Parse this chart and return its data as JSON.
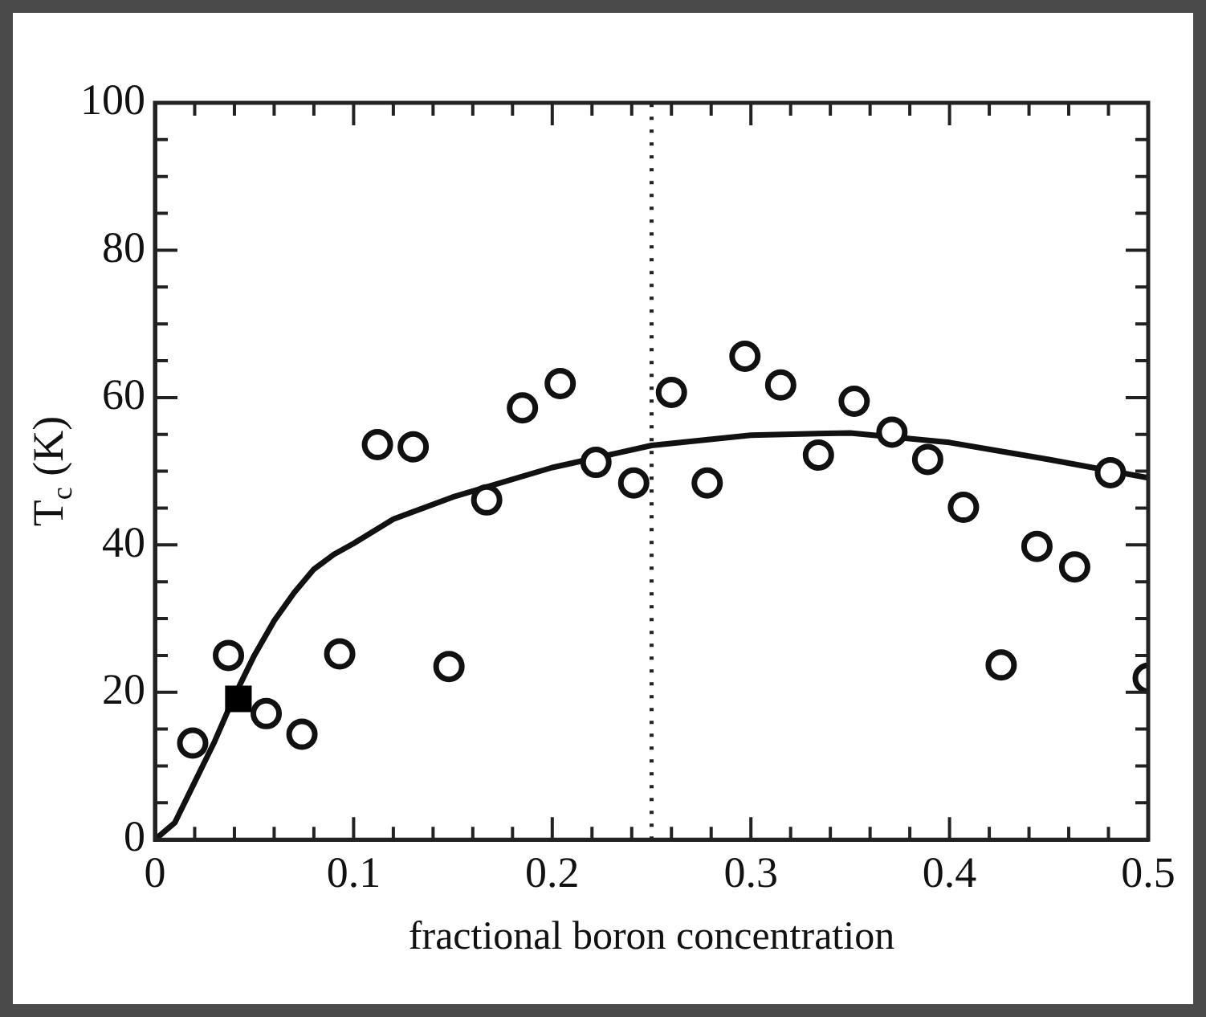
{
  "chart_data": {
    "type": "scatter",
    "xlabel": "fractional boron concentration",
    "ylabel": "T$_{c}$ (K)",
    "xlim": [
      0,
      0.5
    ],
    "ylim": [
      0,
      100
    ],
    "xticks": [
      0,
      {
        "value": 0.02,
        "label": null
      },
      {
        "value": 0.04,
        "label": null
      },
      {
        "value": 0.06,
        "label": null
      },
      {
        "value": 0.08,
        "label": null
      },
      0.1,
      {
        "value": 0.12,
        "label": null
      },
      {
        "value": 0.14,
        "label": null
      },
      {
        "value": 0.16,
        "label": null
      },
      {
        "value": 0.18,
        "label": null
      },
      0.2,
      {
        "value": 0.22,
        "label": null
      },
      {
        "value": 0.24,
        "label": null
      },
      {
        "value": 0.26,
        "label": null
      },
      {
        "value": 0.28,
        "label": null
      },
      0.3,
      {
        "value": 0.32,
        "label": null
      },
      {
        "value": 0.34,
        "label": null
      },
      {
        "value": 0.36,
        "label": null
      },
      {
        "value": 0.38,
        "label": null
      },
      0.4,
      {
        "value": 0.42,
        "label": null
      },
      {
        "value": 0.44,
        "label": null
      },
      {
        "value": 0.46,
        "label": null
      },
      {
        "value": 0.48,
        "label": null
      },
      0.5
    ],
    "yticks": [
      0,
      {
        "value": 5,
        "label": null
      },
      {
        "value": 10,
        "label": null
      },
      {
        "value": 15,
        "label": null
      },
      20,
      {
        "value": 25,
        "label": null
      },
      {
        "value": 30,
        "label": null
      },
      {
        "value": 35,
        "label": null
      },
      40,
      {
        "value": 45,
        "label": null
      },
      {
        "value": 50,
        "label": null
      },
      {
        "value": 55,
        "label": null
      },
      60,
      {
        "value": 65,
        "label": null
      },
      {
        "value": 70,
        "label": null
      },
      {
        "value": 75,
        "label": null
      },
      80,
      {
        "value": 85,
        "label": null
      },
      {
        "value": 90,
        "label": null
      },
      {
        "value": 95,
        "label": null
      },
      100
    ],
    "grid": false,
    "legend": false,
    "series": [
      {
        "type": "line",
        "color": "#111111",
        "marker": "none",
        "line_style": "solid",
        "x": [
          0,
          0.01,
          0.02,
          0.03,
          0.04,
          0.05,
          0.06,
          0.07,
          0.08,
          0.09,
          0.1,
          0.12,
          0.15,
          0.2,
          0.25,
          0.3,
          0.35,
          0.4,
          0.45,
          0.5
        ],
        "values": [
          0,
          2.3,
          7.8,
          13.3,
          19.5,
          25,
          29.7,
          33.5,
          36.7,
          38.7,
          40.2,
          43.5,
          46.5,
          50.5,
          53.5,
          54.9,
          55.2,
          53.9,
          51.6,
          49.1
        ]
      },
      {
        "type": "scatter",
        "color": "#111111",
        "marker": "circle",
        "x": [
          0.019,
          0.037,
          0.056,
          0.074,
          0.093,
          0.112,
          0.13,
          0.148,
          0.167,
          0.185,
          0.204,
          0.222,
          0.241,
          0.26,
          0.278,
          0.297,
          0.315,
          0.334,
          0.352,
          0.371,
          0.389,
          0.407,
          0.426,
          0.444,
          0.463,
          0.481,
          0.5
        ],
        "values": [
          13.1,
          25,
          17.1,
          14.3,
          25.2,
          53.6,
          53.3,
          23.5,
          46.1,
          58.6,
          61.9,
          51.2,
          48.4,
          60.7,
          48.4,
          65.6,
          61.7,
          52.2,
          59.5,
          55.3,
          51.6,
          45.1,
          23.7,
          39.8,
          37,
          49.8,
          21.9
        ]
      },
      {
        "type": "scatter",
        "color": "#000000",
        "marker": "square",
        "x": [
          0.042
        ],
        "values": [
          19.1
        ]
      }
    ],
    "ref_lines": [
      {
        "axis": "x",
        "value": 0.25,
        "color": "#222222",
        "line_style": "dotted"
      }
    ]
  }
}
